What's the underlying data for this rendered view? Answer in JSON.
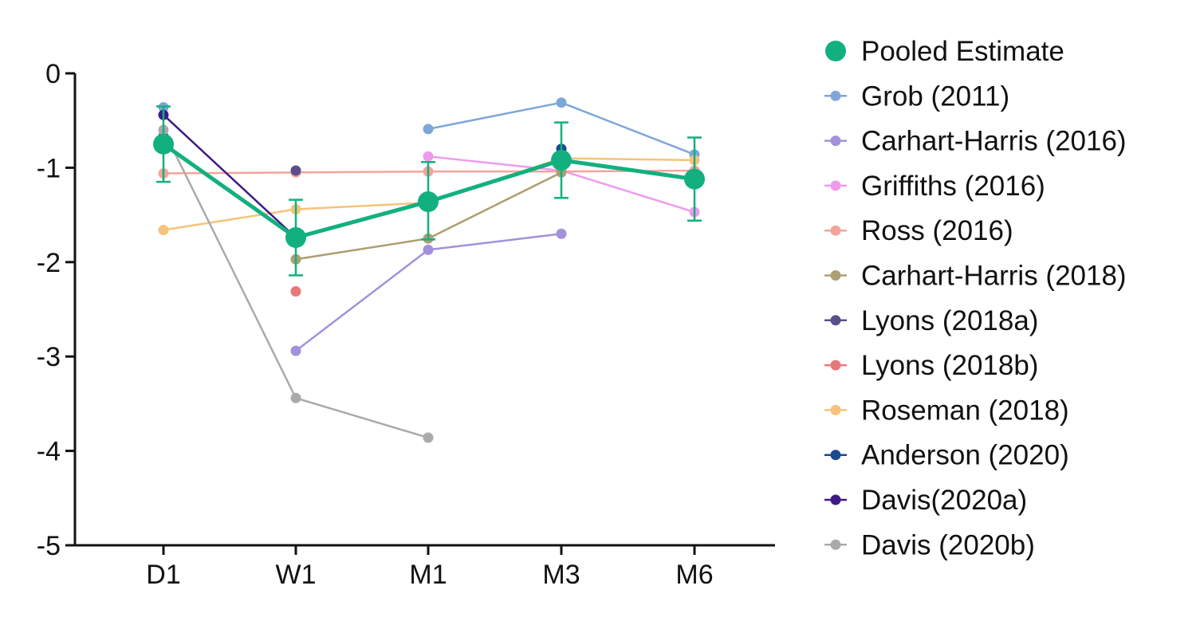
{
  "chart_data": {
    "type": "line",
    "categories": [
      "D1",
      "W1",
      "M1",
      "M3",
      "M6"
    ],
    "ylim": [
      -5,
      0
    ],
    "yticks": [
      0,
      -1,
      -2,
      -3,
      -4,
      -5
    ],
    "ytick_labels": [
      "0",
      "-1",
      "-2",
      "-3",
      "-4",
      "-5"
    ],
    "grid": false,
    "legend_position": "right",
    "pooled": {
      "name": "Pooled Estimate",
      "color": "#12b07f",
      "values": [
        -0.75,
        -1.74,
        -1.36,
        -0.92,
        -1.12
      ],
      "ci_low": [
        -1.15,
        -2.14,
        -1.76,
        -1.32,
        -1.56
      ],
      "ci_high": [
        -0.35,
        -1.34,
        -0.94,
        -0.52,
        -0.68
      ]
    },
    "series": [
      {
        "name": "Grob (2011)",
        "color": "#7fa6d9",
        "values": [
          -0.36,
          null,
          -0.59,
          -0.31,
          -0.86
        ]
      },
      {
        "name": "Carhart-Harris (2016)",
        "color": "#a391db",
        "values": [
          null,
          -2.94,
          -1.87,
          -1.7,
          null
        ]
      },
      {
        "name": "Griffiths (2016)",
        "color": "#ee9bee",
        "values": [
          null,
          null,
          -0.88,
          -1.03,
          -1.47
        ]
      },
      {
        "name": "Ross (2016)",
        "color": "#f3a49a",
        "values": [
          -1.06,
          -1.05,
          -1.04,
          -1.04,
          -1.03
        ]
      },
      {
        "name": "Carhart-Harris (2018)",
        "color": "#ac9f74",
        "values": [
          null,
          -1.97,
          -1.75,
          -1.05,
          null
        ]
      },
      {
        "name": "Lyons (2018a)",
        "color": "#5b4e8d",
        "values": [
          null,
          -1.03,
          null,
          null,
          null
        ]
      },
      {
        "name": "Lyons (2018b)",
        "color": "#e8777a",
        "values": [
          null,
          -2.31,
          null,
          null,
          null
        ]
      },
      {
        "name": "Roseman (2018)",
        "color": "#f6c37a",
        "values": [
          -1.66,
          -1.44,
          -1.37,
          -0.9,
          -0.92
        ]
      },
      {
        "name": "Anderson (2020)",
        "color": "#1a4a8c",
        "values": [
          -0.67,
          null,
          null,
          -0.8,
          null
        ]
      },
      {
        "name": "Davis(2020a)",
        "color": "#3d1a86",
        "values": [
          -0.44,
          -1.74,
          null,
          null,
          null
        ]
      },
      {
        "name": "Davis (2020b)",
        "color": "#aaaaaa",
        "values": [
          -0.6,
          -3.44,
          -3.86,
          null,
          null
        ]
      }
    ]
  }
}
